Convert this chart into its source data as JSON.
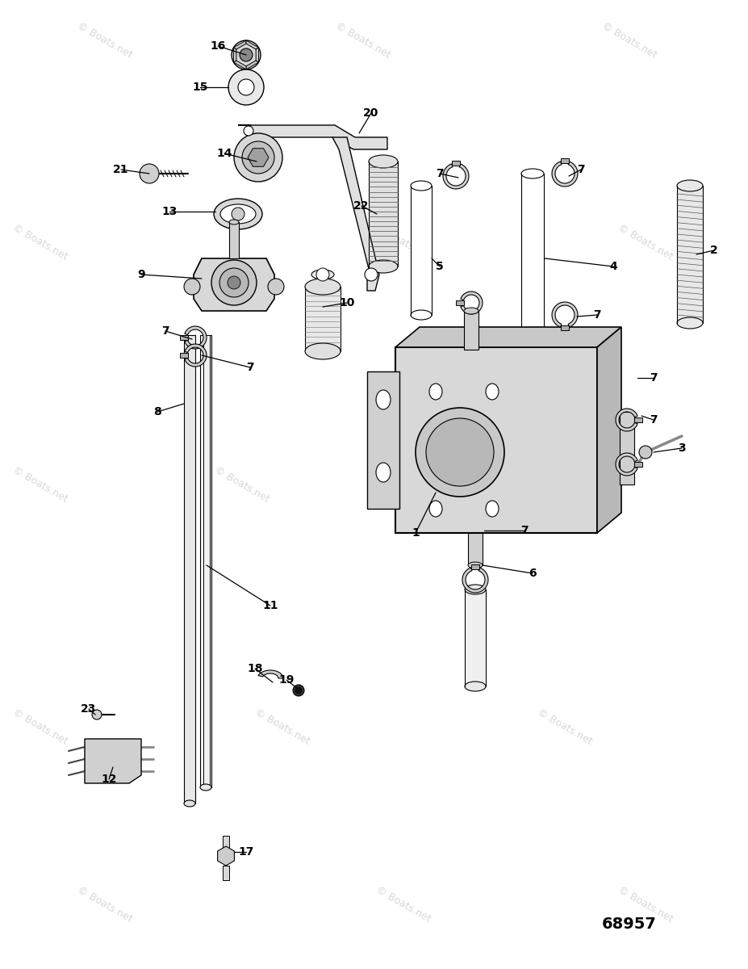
{
  "bg_color": "#ffffff",
  "watermark_text": "© Boats.net",
  "watermark_color": "#c8c8c8",
  "diagram_number": "68957",
  "fig_w": 9.27,
  "fig_h": 12.0,
  "dpi": 100
}
